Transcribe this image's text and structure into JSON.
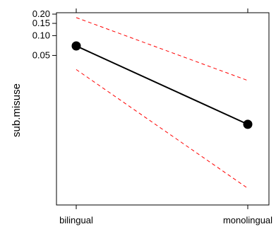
{
  "chart_data": {
    "type": "line",
    "categories": [
      "bilingual",
      "monolingual"
    ],
    "ylabel": "sub.misuse",
    "xlabel": "",
    "y_scale": "logit",
    "y_tick_labels": [
      "0.20",
      "0.15",
      "0.10",
      "0.05"
    ],
    "y_tick_values": [
      0.2,
      0.15,
      0.1,
      0.05
    ],
    "ylim": [
      0.00025,
      0.2
    ],
    "grid": false,
    "legend": "none",
    "series": [
      {
        "values": [
          0.07,
          0.0039
        ],
        "color": "#000000",
        "style": "solid",
        "markers": true
      },
      {
        "values": [
          0.18,
          0.02
        ],
        "color": "#ff0000",
        "style": "dashed",
        "markers": false
      },
      {
        "values": [
          0.03,
          0.00035
        ],
        "color": "#ff0000",
        "style": "dashed",
        "markers": false
      }
    ]
  }
}
